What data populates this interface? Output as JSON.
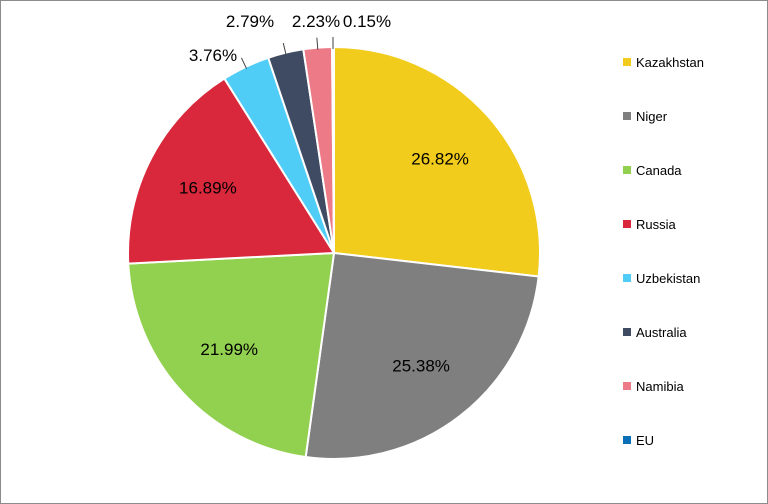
{
  "chart_data": {
    "type": "pie",
    "title": "",
    "legend_placement": "right",
    "slices": [
      {
        "category": "Kazakhstan",
        "value": 26.82,
        "label": "26.82%",
        "color": "#f2cc1d"
      },
      {
        "category": "Niger",
        "value": 25.38,
        "label": "25.38%",
        "color": "#7f7f7f"
      },
      {
        "category": "Canada",
        "value": 21.99,
        "label": "21.99%",
        "color": "#92d050"
      },
      {
        "category": "Russia",
        "value": 16.89,
        "label": "16.89%",
        "color": "#d9283b"
      },
      {
        "category": "Uzbekistan",
        "value": 3.76,
        "label": "3.76%",
        "color": "#4fcdf7"
      },
      {
        "category": "Australia",
        "value": 2.79,
        "label": "2.79%",
        "color": "#3e4b63"
      },
      {
        "category": "Namibia",
        "value": 2.23,
        "label": "2.23%",
        "color": "#ec7b87"
      },
      {
        "category": "EU",
        "value": 0.15,
        "label": "0.15%",
        "color": "#0b6fb8"
      }
    ]
  }
}
